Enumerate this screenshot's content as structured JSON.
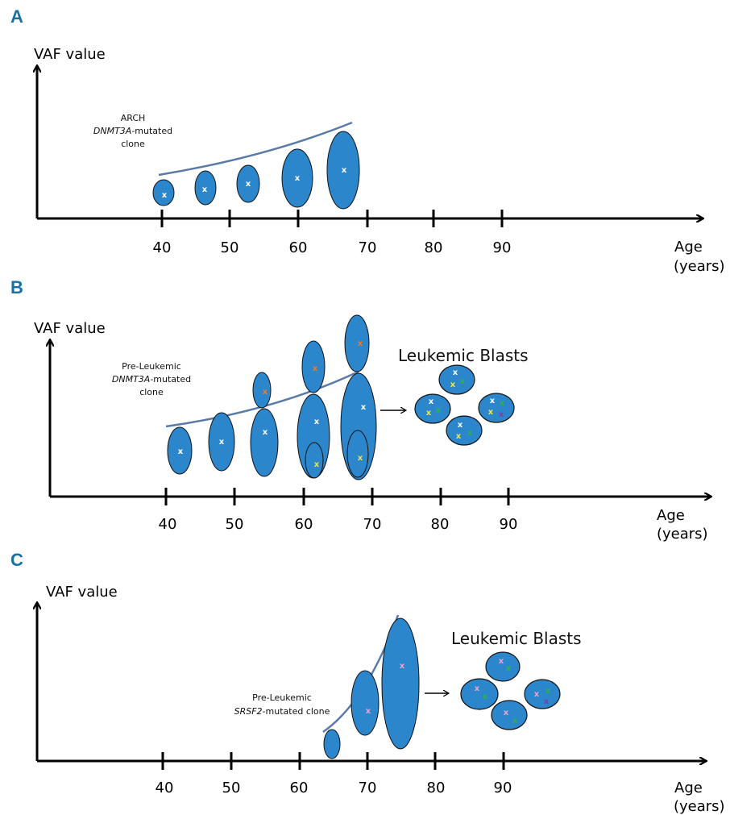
{
  "colors": {
    "panel_label": "#1a6fa3",
    "clone_fill": "#2b86cc",
    "clone_stroke": "#111111",
    "trend_line": "#5a7aa8",
    "mark_white": "#ffffff",
    "mark_orange": "#f07a2a",
    "mark_yellow": "#e9e845",
    "mark_green": "#2fb24b",
    "mark_purple": "#7b3fa8",
    "mark_pink": "#e8a6cf"
  },
  "panels": [
    {
      "id": "A",
      "label": "A",
      "y_axis_title": "VAF value",
      "x_axis_title_line1": "Age",
      "x_axis_title_line2": "(years)",
      "ticks": [
        "40",
        "50",
        "60",
        "70",
        "80",
        "90"
      ],
      "annotation": {
        "line1": "ARCH",
        "gene": "DNMT3A",
        "suffix": "-mutated",
        "line3": "clone"
      }
    },
    {
      "id": "B",
      "label": "B",
      "y_axis_title": "VAF value",
      "x_axis_title_line1": "Age",
      "x_axis_title_line2": "(years)",
      "ticks": [
        "40",
        "50",
        "60",
        "70",
        "80",
        "90"
      ],
      "annotation": {
        "line1": "Pre-Leukemic",
        "gene": "DNMT3A",
        "suffix": "-mutated",
        "line3": "clone"
      },
      "blasts_title": "Leukemic Blasts"
    },
    {
      "id": "C",
      "label": "C",
      "y_axis_title": "VAF value",
      "x_axis_title_line1": "Age",
      "x_axis_title_line2": "(years)",
      "ticks": [
        "40",
        "50",
        "60",
        "70",
        "80",
        "90"
      ],
      "annotation": {
        "line1": "Pre-Leukemic",
        "gene": "SRSF2",
        "suffix": "-mutated clone"
      },
      "blasts_title": "Leukemic Blasts"
    }
  ],
  "mutation_mark": "x"
}
